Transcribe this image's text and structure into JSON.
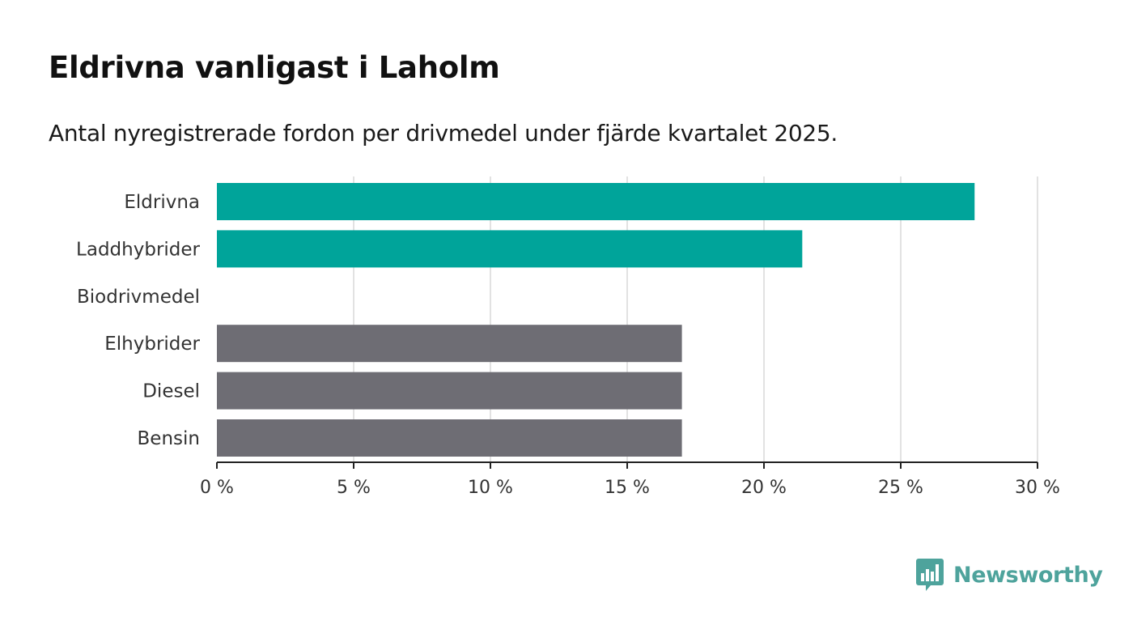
{
  "chart_data": {
    "type": "bar",
    "orientation": "horizontal",
    "title": "Eldrivna vanligast i Laholm",
    "subtitle": "Antal nyregistrerade fordon per drivmedel under fjärde kvartalet 2025.",
    "categories": [
      "Eldrivna",
      "Laddhybrider",
      "Biodrivmedel",
      "Elhybrider",
      "Diesel",
      "Bensin"
    ],
    "values": [
      27.7,
      21.4,
      0,
      17.0,
      17.0,
      17.0
    ],
    "bar_colors": [
      "#00a49a",
      "#00a49a",
      "#00a49a",
      "#6e6d74",
      "#6e6d74",
      "#6e6d74"
    ],
    "xlim": [
      0,
      30
    ],
    "x_ticks": [
      0,
      5,
      10,
      15,
      20,
      25,
      30
    ],
    "x_tick_labels": [
      "0 %",
      "5 %",
      "10 %",
      "15 %",
      "20 %",
      "25 %",
      "30 %"
    ],
    "xlabel": "",
    "ylabel": "",
    "grid": "vertical",
    "legend": "none"
  },
  "brand": {
    "name": "Newsworthy",
    "logo_icon": "newsworthy-bar-chart-icon",
    "color": "#4ea39c"
  }
}
